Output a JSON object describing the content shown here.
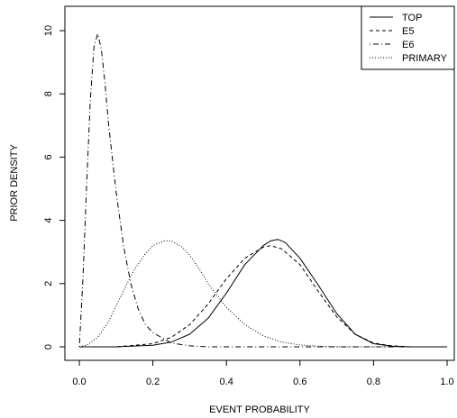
{
  "chart_data": {
    "type": "line",
    "title": "",
    "xlabel": "EVENT PROBABILITY",
    "ylabel": "PRIOR DENSITY",
    "xlim": [
      0,
      1
    ],
    "ylim": [
      0,
      10
    ],
    "xticks": [
      0.0,
      0.2,
      0.4,
      0.6,
      0.8,
      1.0
    ],
    "xtick_labels": [
      "0.0",
      "0.2",
      "0.4",
      "0.6",
      "0.8",
      "1.0"
    ],
    "yticks": [
      0,
      2,
      4,
      6,
      8,
      10
    ],
    "ytick_labels": [
      "0",
      "2",
      "4",
      "6",
      "8",
      "10"
    ],
    "grid": false,
    "legend_position": "top-right",
    "series": [
      {
        "name": "TOP",
        "line_style": "solid",
        "x": [
          0.0,
          0.1,
          0.2,
          0.25,
          0.3,
          0.35,
          0.4,
          0.45,
          0.5,
          0.52,
          0.54,
          0.56,
          0.6,
          0.65,
          0.7,
          0.75,
          0.8,
          0.85,
          0.9,
          1.0
        ],
        "y": [
          0.0,
          0.0,
          0.05,
          0.15,
          0.4,
          0.9,
          1.7,
          2.6,
          3.2,
          3.35,
          3.4,
          3.3,
          2.8,
          1.95,
          1.05,
          0.4,
          0.1,
          0.02,
          0.0,
          0.0
        ]
      },
      {
        "name": "E5",
        "line_style": "dashed",
        "x": [
          0.0,
          0.1,
          0.2,
          0.25,
          0.3,
          0.35,
          0.4,
          0.45,
          0.5,
          0.52,
          0.55,
          0.6,
          0.65,
          0.7,
          0.75,
          0.8,
          0.85,
          0.9,
          1.0
        ],
        "y": [
          0.0,
          0.0,
          0.1,
          0.3,
          0.7,
          1.35,
          2.15,
          2.8,
          3.15,
          3.2,
          3.1,
          2.6,
          1.75,
          0.95,
          0.4,
          0.12,
          0.03,
          0.0,
          0.0
        ]
      },
      {
        "name": "E6",
        "line_style": "dotdash",
        "x": [
          0.0,
          0.01,
          0.02,
          0.03,
          0.04,
          0.05,
          0.06,
          0.07,
          0.08,
          0.1,
          0.12,
          0.14,
          0.16,
          0.18,
          0.2,
          0.25,
          0.3,
          0.35,
          0.4,
          0.5,
          1.0
        ],
        "y": [
          0.0,
          2.2,
          5.2,
          7.8,
          9.5,
          9.9,
          9.4,
          8.3,
          7.0,
          4.9,
          3.2,
          2.0,
          1.2,
          0.7,
          0.45,
          0.12,
          0.03,
          0.0,
          0.0,
          0.0,
          0.0
        ]
      },
      {
        "name": "PRIMARY",
        "line_style": "dotted",
        "x": [
          0.0,
          0.02,
          0.05,
          0.08,
          0.1,
          0.13,
          0.15,
          0.18,
          0.2,
          0.23,
          0.25,
          0.28,
          0.3,
          0.33,
          0.35,
          0.4,
          0.45,
          0.5,
          0.55,
          0.6,
          0.65,
          0.7,
          0.8,
          1.0
        ],
        "y": [
          0.0,
          0.05,
          0.3,
          0.8,
          1.3,
          2.0,
          2.45,
          2.95,
          3.2,
          3.35,
          3.35,
          3.15,
          2.9,
          2.4,
          2.0,
          1.25,
          0.7,
          0.35,
          0.15,
          0.06,
          0.02,
          0.0,
          0.0,
          0.0
        ]
      }
    ]
  }
}
